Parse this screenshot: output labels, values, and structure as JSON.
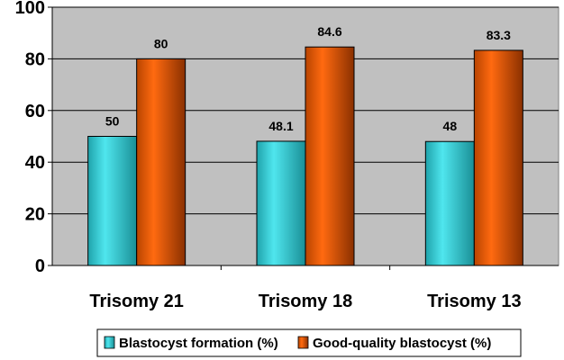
{
  "chart_data": {
    "type": "bar",
    "title": "",
    "xlabel": "",
    "ylabel": "",
    "ylim": [
      0,
      100
    ],
    "yticks": [
      0,
      20,
      40,
      60,
      80,
      100
    ],
    "grid": true,
    "legend_position": "bottom",
    "categories": [
      "Trisomy 21",
      "Trisomy 18",
      "Trisomy 13"
    ],
    "series": [
      {
        "name": "Blastocyst formation (%)",
        "values": [
          50,
          48.1,
          48
        ],
        "labels": [
          "50",
          "48.1",
          "48"
        ],
        "color": "#2EC4CC"
      },
      {
        "name": "Good-quality blastocyst (%)",
        "values": [
          80,
          84.6,
          83.3
        ],
        "labels": [
          "80",
          "84.6",
          "83.3"
        ],
        "color": "#F06010"
      }
    ],
    "plot_background": "#C0C0C0"
  }
}
